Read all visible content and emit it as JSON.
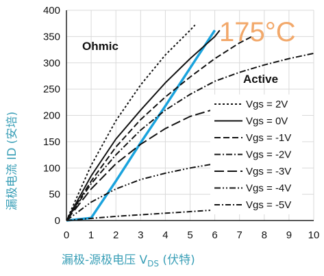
{
  "chart_data": {
    "type": "line",
    "xlabel": "漏极-源极电压 V",
    "xlabel_sub": "DS",
    "xlabel_suffix": " (伏特)",
    "ylabel": "漏极电流 ID (安培)",
    "xlim": [
      0,
      10
    ],
    "ylim": [
      0,
      400
    ],
    "xticks": [
      0,
      1,
      2,
      3,
      4,
      5,
      6,
      7,
      8,
      9,
      10
    ],
    "yticks": [
      0,
      50,
      100,
      150,
      200,
      250,
      300,
      350,
      400
    ],
    "grid": true,
    "legend_position": "right",
    "annotations": {
      "ohmic": "Ohmic",
      "active": "Active",
      "temperature": "175°C"
    },
    "colors": {
      "axis_text": "#3a9fb7",
      "boundary": "#1aa3dd",
      "temperature": "#f2a86a",
      "curves": "#111111"
    },
    "series": [
      {
        "name": "Vgs = 2V",
        "dash": "3,3",
        "x": [
          0,
          1,
          2,
          3,
          4,
          5,
          5.2
        ],
        "y": [
          0,
          105,
          190,
          258,
          315,
          362,
          372
        ]
      },
      {
        "name": "Vgs = 0V",
        "dash": "",
        "x": [
          0,
          1,
          2,
          3,
          4,
          5,
          6,
          6.2
        ],
        "y": [
          0,
          85,
          155,
          210,
          262,
          308,
          350,
          362
        ]
      },
      {
        "name": "Vgs = -1V",
        "dash": "9,4",
        "x": [
          0,
          1,
          2,
          3,
          4,
          5,
          6,
          7,
          7.5
        ],
        "y": [
          0,
          75,
          140,
          192,
          235,
          273,
          308,
          338,
          350
        ]
      },
      {
        "name": "Vgs = -2V",
        "dash": "9,3,2,3",
        "x": [
          0,
          1,
          2,
          3,
          4,
          5,
          6,
          7,
          8,
          9,
          10
        ],
        "y": [
          0,
          70,
          125,
          172,
          210,
          240,
          265,
          282,
          296,
          308,
          318
        ]
      },
      {
        "name": "Vgs = -3V",
        "dash": "14,5",
        "x": [
          0,
          1,
          2,
          3,
          4,
          5,
          6
        ],
        "y": [
          0,
          60,
          108,
          145,
          175,
          198,
          212
        ]
      },
      {
        "name": "Vgs = -4V",
        "dash": "9,3,2,3,2,3",
        "x": [
          0,
          1,
          2,
          3,
          4,
          5,
          6
        ],
        "y": [
          0,
          35,
          60,
          78,
          90,
          100,
          108
        ]
      },
      {
        "name": "Vgs = -5V",
        "dash": "8,3,2,3",
        "x": [
          0,
          1,
          2,
          3,
          4,
          5,
          6
        ],
        "y": [
          0,
          4,
          8,
          11,
          14,
          17,
          20
        ]
      }
    ],
    "boundary": {
      "x": [
        0,
        1,
        2,
        3,
        4,
        5,
        6
      ],
      "y": [
        0,
        5,
        75,
        148,
        218,
        290,
        362
      ]
    }
  }
}
